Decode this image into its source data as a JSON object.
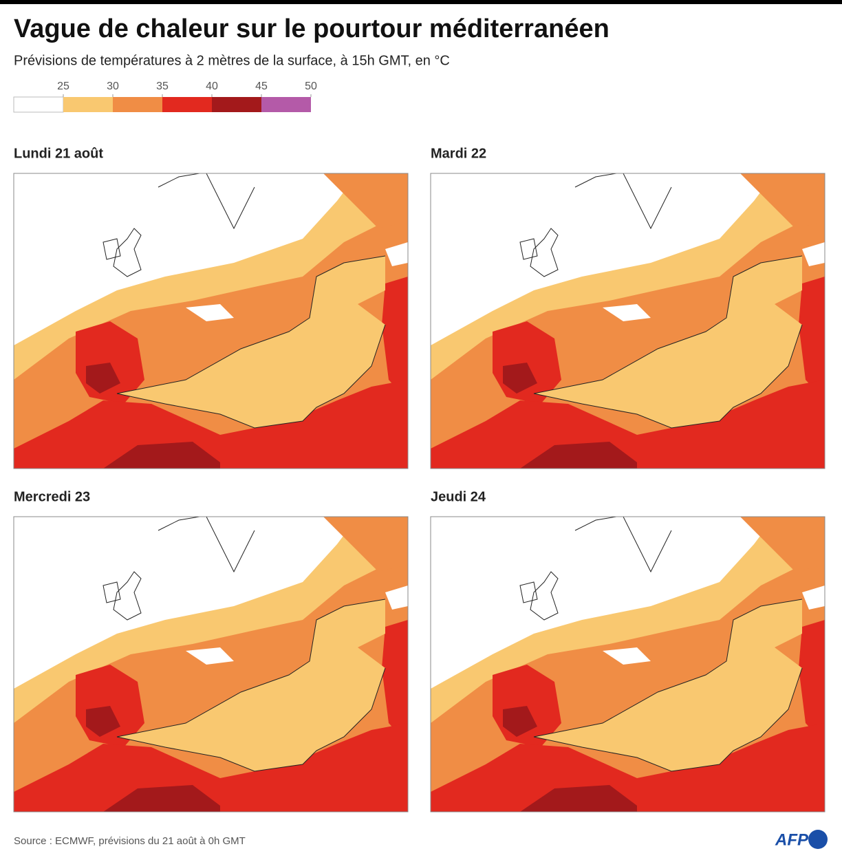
{
  "header": {
    "title": "Vague de chaleur sur le pourtour méditerranéen",
    "subtitle": "Prévisions de températures à 2 mètres de la surface, à 15h GMT, en °C"
  },
  "legend": {
    "ticks": [
      25,
      30,
      35,
      40,
      45,
      50
    ],
    "colors": [
      "#ffffff",
      "#f9c870",
      "#f08d45",
      "#e2291f",
      "#a3191b",
      "#b45aa8"
    ]
  },
  "panels": [
    {
      "title": "Lundi 21 août"
    },
    {
      "title": "Mardi 22"
    },
    {
      "title": "Mercredi 23"
    },
    {
      "title": "Jeudi 24"
    }
  ],
  "footer": {
    "source": "Source : ECMWF, prévisions du 21 août à 0h GMT",
    "logo": "AFP"
  }
}
